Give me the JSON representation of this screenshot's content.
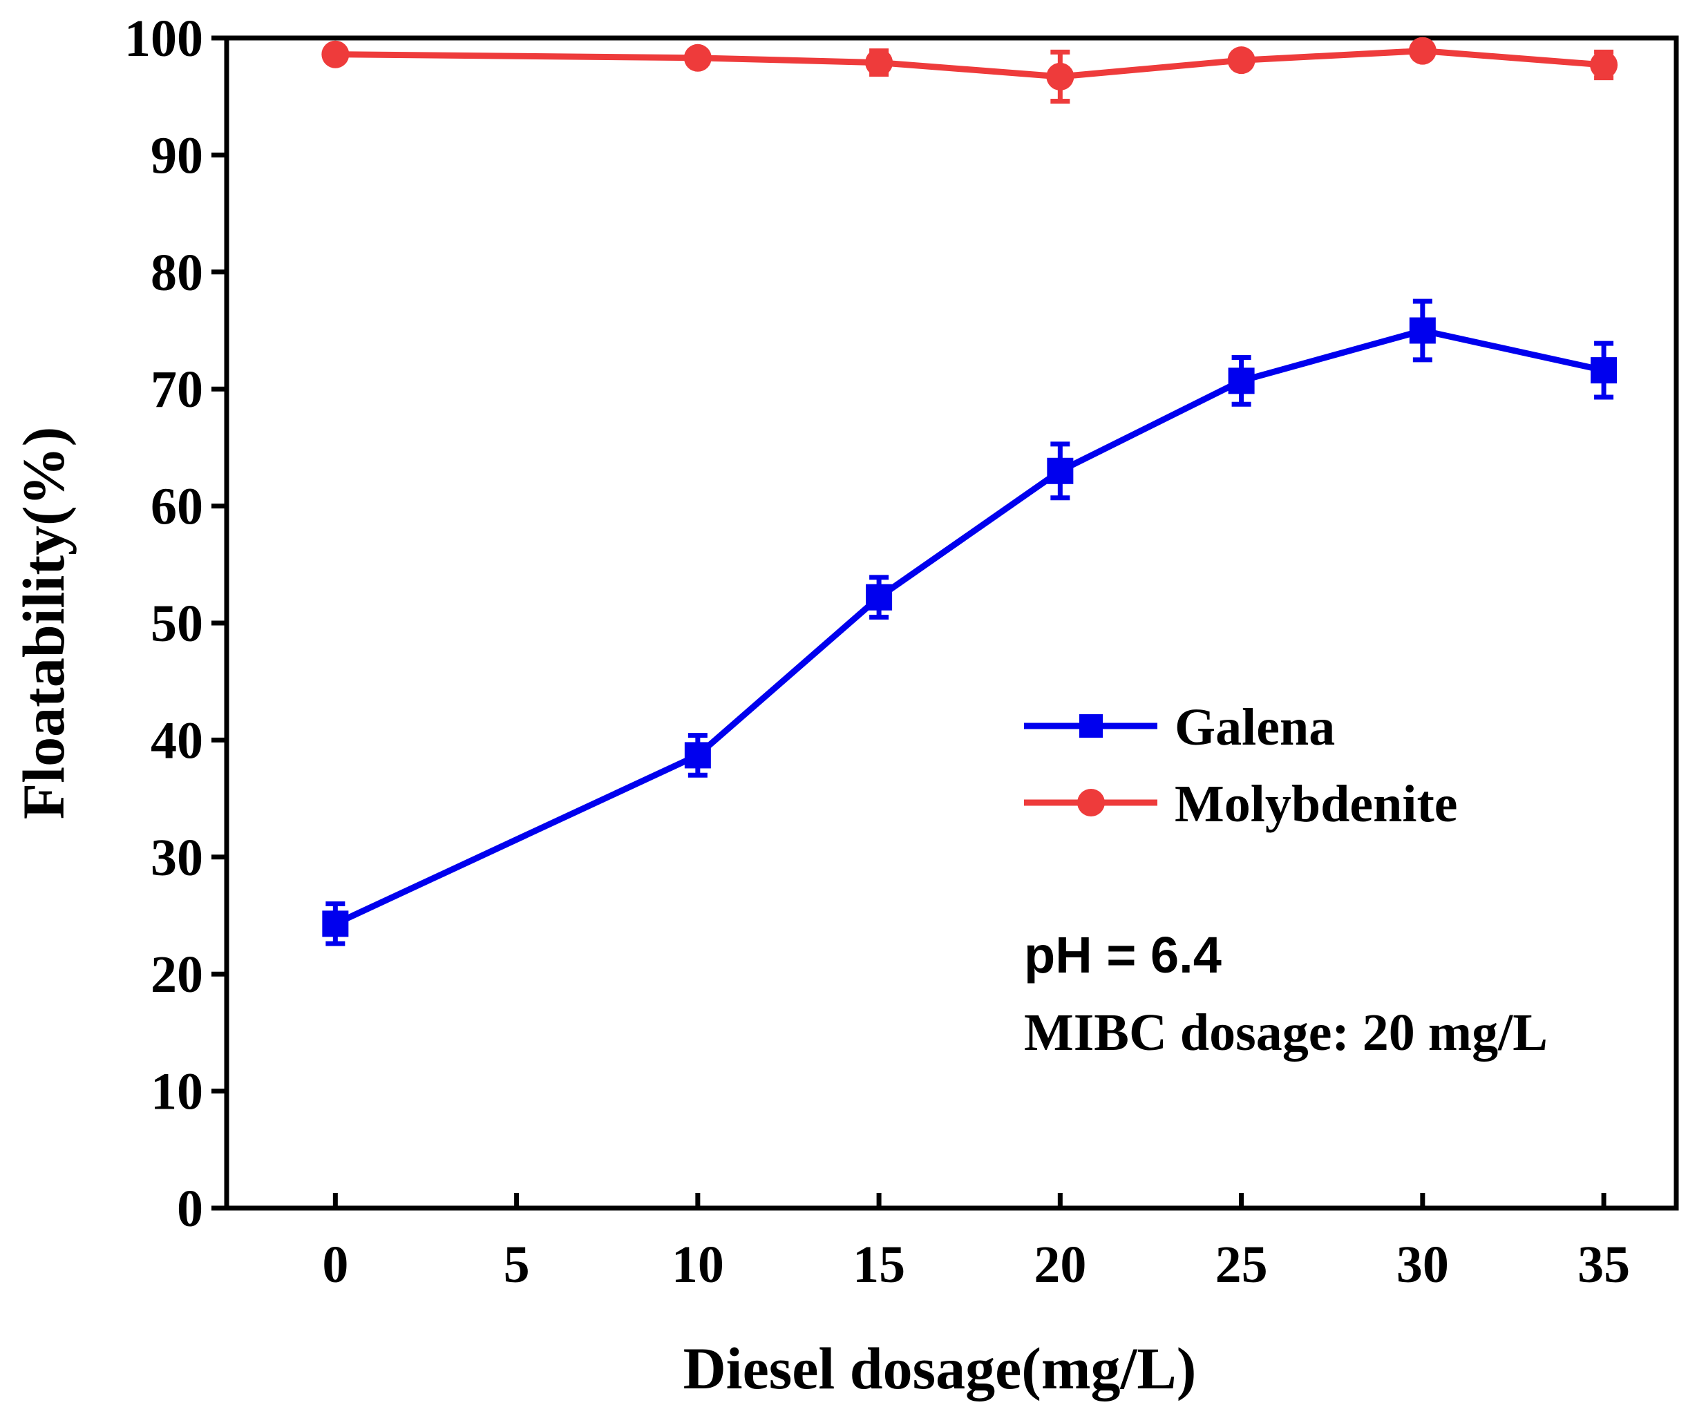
{
  "chart_data": {
    "type": "line",
    "xlabel": "Diesel dosage(mg/L)",
    "ylabel": "Floatability(%)",
    "xlim": [
      -3,
      37
    ],
    "ylim": [
      0,
      100
    ],
    "xticks": [
      0,
      5,
      10,
      15,
      20,
      25,
      30,
      35
    ],
    "yticks": [
      0,
      10,
      20,
      30,
      40,
      50,
      60,
      70,
      80,
      90,
      100
    ],
    "x": [
      0,
      10,
      15,
      20,
      25,
      30,
      35
    ],
    "series": [
      {
        "name": "Galena",
        "color": "#0000ee",
        "marker": "square",
        "values": [
          24.3,
          38.7,
          52.2,
          63.0,
          70.7,
          75.0,
          71.6
        ],
        "errors": [
          1.7,
          1.7,
          1.7,
          2.3,
          2.0,
          2.5,
          2.3
        ]
      },
      {
        "name": "Molybdenite",
        "color": "#ee3b3b",
        "marker": "circle",
        "values": [
          98.6,
          98.3,
          97.9,
          96.7,
          98.1,
          98.9,
          97.7
        ],
        "errors": [
          0.4,
          0.5,
          1.0,
          2.1,
          0.6,
          0.3,
          1.1
        ]
      }
    ],
    "legend_position": "center-right",
    "annotations": [
      "pH = 6.4",
      "MIBC dosage: 20 mg/L"
    ]
  }
}
